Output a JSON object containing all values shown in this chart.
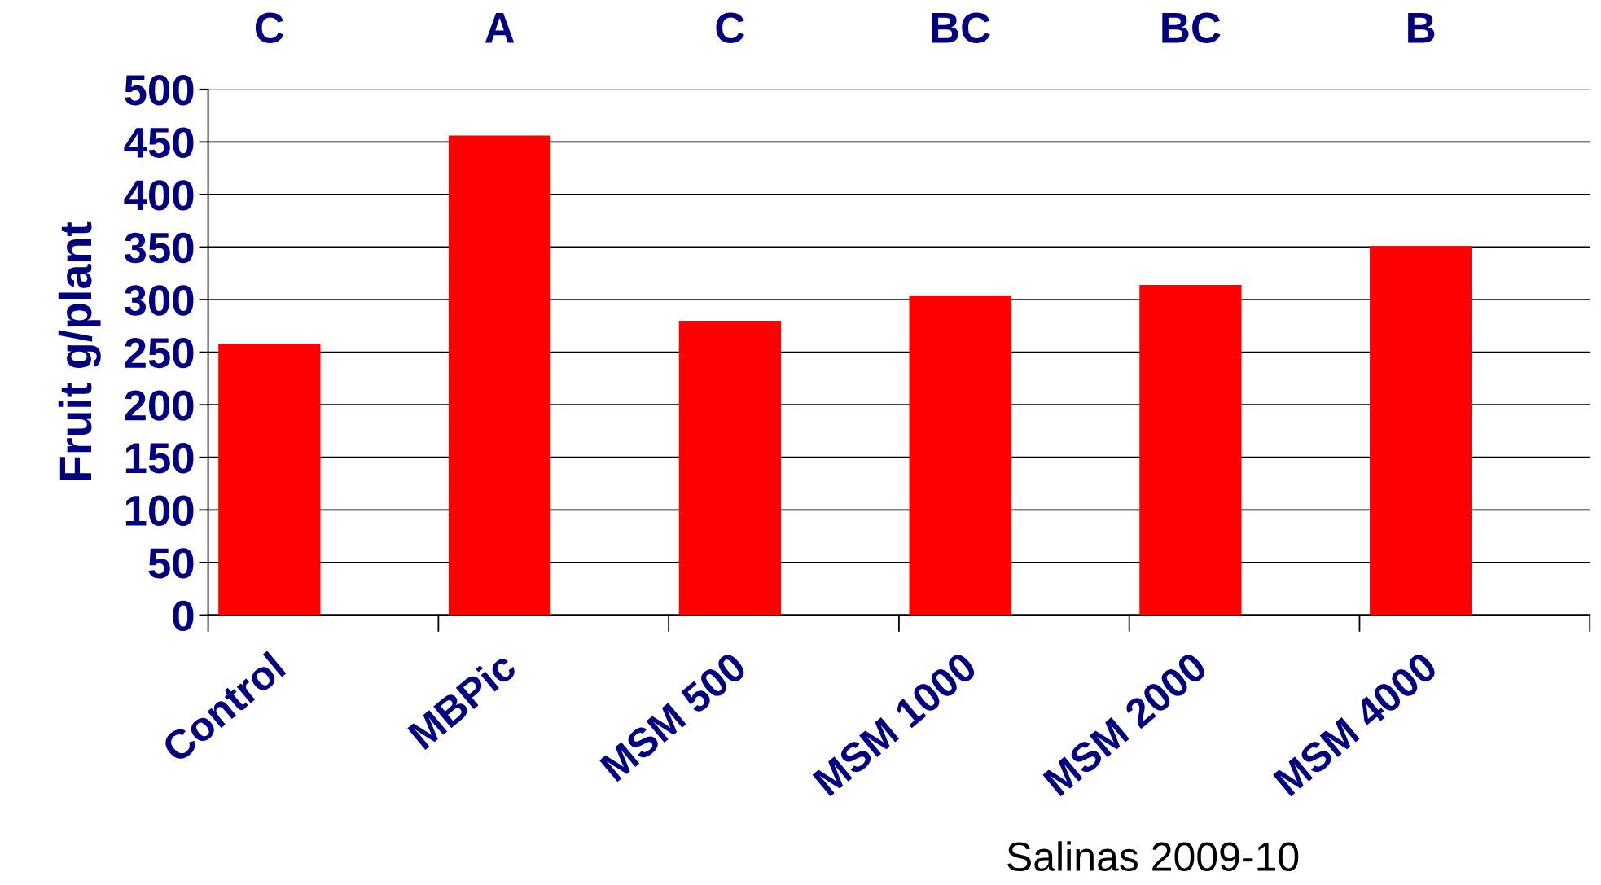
{
  "chart_data": {
    "type": "bar",
    "ylabel": "Fruit g/plant",
    "categories": [
      "Control",
      "MBPic",
      "MSM 500",
      "MSM 1000",
      "MSM 2000",
      "MSM 4000"
    ],
    "values": [
      258,
      456,
      280,
      304,
      314,
      351
    ],
    "color": "#ff0000",
    "ylim": [
      0,
      500
    ],
    "yticks": [
      0,
      50,
      100,
      150,
      200,
      250,
      300,
      350,
      400,
      450,
      500
    ],
    "grid": "y",
    "annotations": [
      "C",
      "A",
      "C",
      "BC",
      "BC",
      "B",
      "Salinas 2009-10"
    ]
  }
}
